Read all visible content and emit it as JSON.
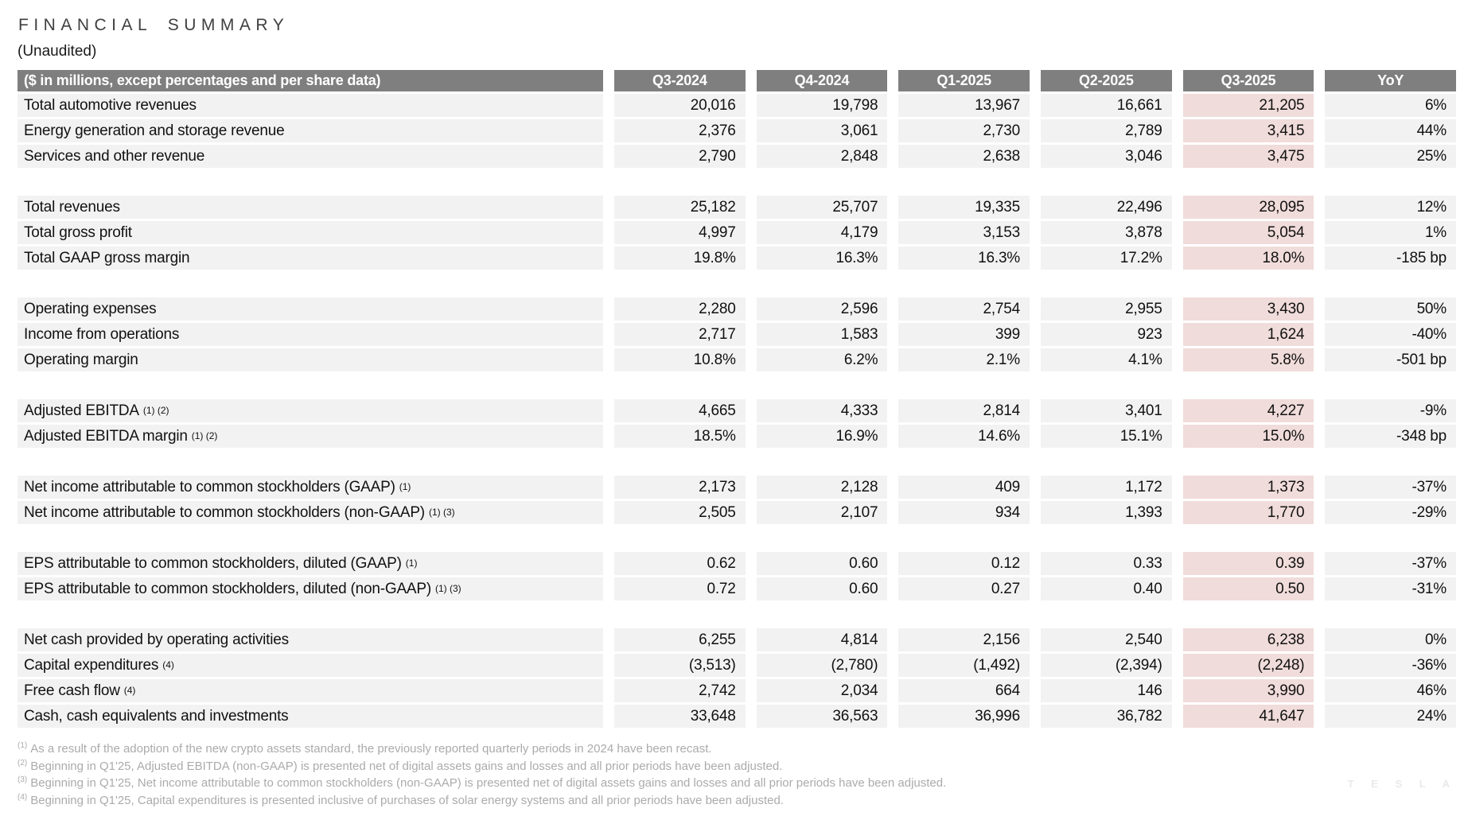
{
  "header": {
    "title": "FINANCIAL SUMMARY",
    "subtitle": "(Unaudited)"
  },
  "table": {
    "label_header": "($ in millions, except percentages and per share data)",
    "columns": [
      "Q3-2024",
      "Q4-2024",
      "Q1-2025",
      "Q2-2025",
      "Q3-2025",
      "YoY"
    ],
    "highlight_column": "Q3-2025",
    "rows": [
      {
        "label": "Total automotive revenues",
        "sup": "",
        "values": [
          "20,016",
          "19,798",
          "13,967",
          "16,661",
          "21,205",
          "6%"
        ]
      },
      {
        "label": "Energy generation and storage revenue",
        "sup": "",
        "values": [
          "2,376",
          "3,061",
          "2,730",
          "2,789",
          "3,415",
          "44%"
        ]
      },
      {
        "label": "Services and other revenue",
        "sup": "",
        "values": [
          "2,790",
          "2,848",
          "2,638",
          "3,046",
          "3,475",
          "25%"
        ]
      },
      {
        "spacer": true
      },
      {
        "label": "Total revenues",
        "sup": "",
        "values": [
          "25,182",
          "25,707",
          "19,335",
          "22,496",
          "28,095",
          "12%"
        ]
      },
      {
        "label": "Total gross profit",
        "sup": "",
        "values": [
          "4,997",
          "4,179",
          "3,153",
          "3,878",
          "5,054",
          "1%"
        ]
      },
      {
        "label": "Total GAAP gross margin",
        "sup": "",
        "values": [
          "19.8%",
          "16.3%",
          "16.3%",
          "17.2%",
          "18.0%",
          "-185 bp"
        ]
      },
      {
        "spacer": true
      },
      {
        "label": "Operating expenses",
        "sup": "",
        "values": [
          "2,280",
          "2,596",
          "2,754",
          "2,955",
          "3,430",
          "50%"
        ]
      },
      {
        "label": "Income from operations",
        "sup": "",
        "values": [
          "2,717",
          "1,583",
          "399",
          "923",
          "1,624",
          "-40%"
        ]
      },
      {
        "label": "Operating margin",
        "sup": "",
        "values": [
          "10.8%",
          "6.2%",
          "2.1%",
          "4.1%",
          "5.8%",
          "-501 bp"
        ]
      },
      {
        "spacer": true
      },
      {
        "label": "Adjusted EBITDA",
        "sup": "(1) (2)",
        "values": [
          "4,665",
          "4,333",
          "2,814",
          "3,401",
          "4,227",
          "-9%"
        ]
      },
      {
        "label": "Adjusted EBITDA margin",
        "sup": "(1) (2)",
        "values": [
          "18.5%",
          "16.9%",
          "14.6%",
          "15.1%",
          "15.0%",
          "-348 bp"
        ]
      },
      {
        "spacer": true
      },
      {
        "label": "Net income attributable to common stockholders (GAAP)",
        "sup": "(1)",
        "values": [
          "2,173",
          "2,128",
          "409",
          "1,172",
          "1,373",
          "-37%"
        ]
      },
      {
        "label": "Net income attributable to common stockholders (non-GAAP)",
        "sup": "(1) (3)",
        "values": [
          "2,505",
          "2,107",
          "934",
          "1,393",
          "1,770",
          "-29%"
        ]
      },
      {
        "spacer": true
      },
      {
        "label": "EPS attributable to common stockholders, diluted (GAAP)",
        "sup": "(1)",
        "values": [
          "0.62",
          "0.60",
          "0.12",
          "0.33",
          "0.39",
          "-37%"
        ]
      },
      {
        "label": "EPS attributable to common stockholders, diluted (non-GAAP)",
        "sup": "(1) (3)",
        "values": [
          "0.72",
          "0.60",
          "0.27",
          "0.40",
          "0.50",
          "-31%"
        ]
      },
      {
        "spacer": true
      },
      {
        "label": "Net cash provided by operating activities",
        "sup": "",
        "values": [
          "6,255",
          "4,814",
          "2,156",
          "2,540",
          "6,238",
          "0%"
        ]
      },
      {
        "label": "Capital expenditures",
        "sup": "(4)",
        "values": [
          "(3,513)",
          "(2,780)",
          "(1,492)",
          "(2,394)",
          "(2,248)",
          "-36%"
        ]
      },
      {
        "label": "Free cash flow",
        "sup": "(4)",
        "values": [
          "2,742",
          "2,034",
          "664",
          "146",
          "3,990",
          "46%"
        ]
      },
      {
        "label": "Cash, cash equivalents and investments",
        "sup": "",
        "values": [
          "33,648",
          "36,563",
          "36,996",
          "36,782",
          "41,647",
          "24%"
        ]
      }
    ]
  },
  "footnotes": [
    {
      "marker": "(1)",
      "text": "As a result of the adoption of the new crypto assets standard, the previously reported quarterly periods in 2024 have been recast."
    },
    {
      "marker": "(2)",
      "text": "Beginning in Q1'25, Adjusted EBITDA (non-GAAP) is presented net of digital assets gains and losses and all prior periods have been adjusted."
    },
    {
      "marker": "(3)",
      "text": "Beginning in Q1'25, Net income attributable to common stockholders (non-GAAP) is presented net of digital assets gains and losses and all prior periods have been adjusted."
    },
    {
      "marker": "(4)",
      "text": "Beginning in Q1'25, Capital expenditures is presented inclusive of purchases of solar energy systems and all prior periods have been adjusted."
    }
  ],
  "watermark": "T E S L A",
  "colors": {
    "header_bg": "#7f7f7f",
    "header_text": "#ffffff",
    "row_bg": "#f2f2f2",
    "highlight_bg": "#f0dcda",
    "title_text": "#3f3f3f",
    "footnote_text": "#ababab",
    "watermark_text": "#e9e9e9"
  }
}
